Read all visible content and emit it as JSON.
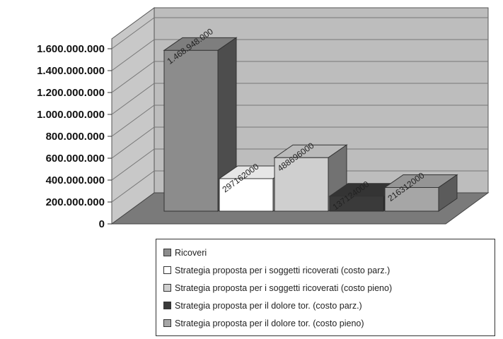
{
  "chart_data": {
    "type": "bar",
    "style": "3d-column",
    "title": "",
    "xlabel": "",
    "ylabel": "",
    "ylim": [
      0,
      1600000000
    ],
    "yticks": [
      "0",
      "200.000.000",
      "400.000.000",
      "600.000.000",
      "800.000.000",
      "1.000.000.000",
      "1.200.000.000",
      "1.400.000.000",
      "1.600.000.000"
    ],
    "grid": true,
    "legend_position": "bottom",
    "series": [
      {
        "name": "Ricoveri",
        "value": 1468948000,
        "label": "1.468.948.000",
        "color": "#8c8c8c"
      },
      {
        "name": "Strategia proposta per i soggetti ricoverati (costo parz.)",
        "value": 297162000,
        "label": "297162000",
        "color": "#ffffff"
      },
      {
        "name": "Strategia proposta per i soggetti ricoverati (costo pieno)",
        "value": 488696000,
        "label": "488696000",
        "color": "#cfcfcf"
      },
      {
        "name": "Strategia proposta per il dolore tor. (costo parz.)",
        "value": 137124000,
        "label": "137124000",
        "color": "#3a3a3a"
      },
      {
        "name": "Strategia proposta per il dolore tor. (costo pieno)",
        "value": 216312000,
        "label": "216312000",
        "color": "#a6a6a6"
      }
    ]
  }
}
